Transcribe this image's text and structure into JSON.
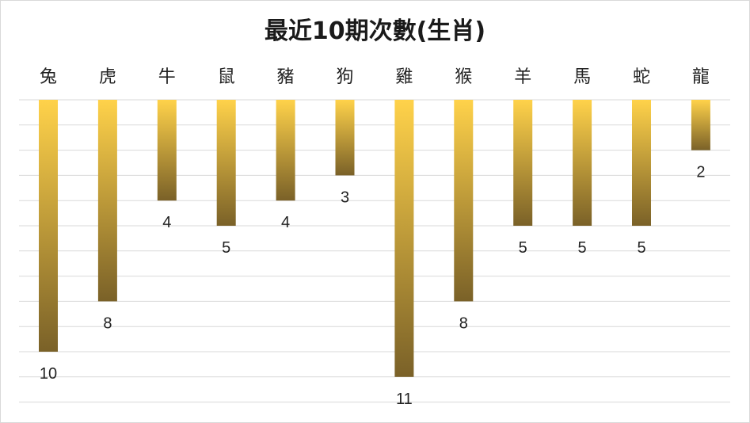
{
  "chart_data": {
    "type": "bar",
    "title": "最近10期次數(生肖)",
    "categories": [
      "兔",
      "虎",
      "牛",
      "鼠",
      "豬",
      "狗",
      "雞",
      "猴",
      "羊",
      "馬",
      "蛇",
      "龍"
    ],
    "values": [
      10,
      8,
      4,
      5,
      4,
      3,
      11,
      8,
      5,
      5,
      5,
      2
    ],
    "ylim": [
      0,
      12
    ],
    "orientation": "downward",
    "grid": true,
    "legend": "none",
    "colors": {
      "bar_top": "#ffd24a",
      "bar_bottom": "#7a6128",
      "grid": "#d9d9d9"
    }
  }
}
